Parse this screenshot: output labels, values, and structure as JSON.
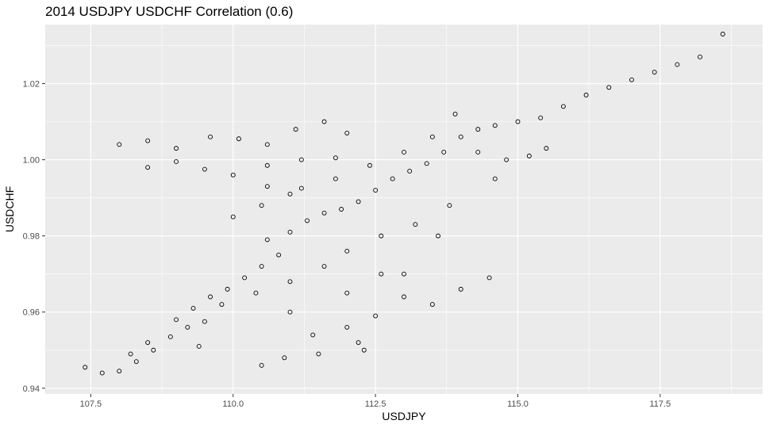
{
  "chart_data": {
    "type": "scatter",
    "title": "2014 USDJPY USDCHF Correlation (0.6)",
    "xlabel": "USDJPY",
    "ylabel": "USDCHF",
    "xlim": [
      106.7,
      119.3
    ],
    "ylim": [
      0.9385,
      1.0355
    ],
    "x_ticks": [
      107.5,
      110.0,
      112.5,
      115.0,
      117.5
    ],
    "x_tick_labels": [
      "107.5",
      "110.0",
      "112.5",
      "115.0",
      "117.5"
    ],
    "y_ticks": [
      0.94,
      0.96,
      0.98,
      1.0,
      1.02
    ],
    "y_tick_labels": [
      "0.94",
      "0.96",
      "0.98",
      "1.00",
      "1.02"
    ],
    "grid": true,
    "panel_background": "#ebebeb",
    "grid_color": "#ffffff",
    "marker": "hollow-circle",
    "marker_color": "#000000",
    "series": [
      {
        "values": [
          [
            107.4,
            0.9455
          ],
          [
            107.7,
            0.944
          ],
          [
            108.0,
            0.9445
          ],
          [
            108.3,
            0.947
          ],
          [
            108.6,
            0.95
          ],
          [
            108.9,
            0.9535
          ],
          [
            109.2,
            0.956
          ],
          [
            109.5,
            0.9575
          ],
          [
            109.3,
            0.961
          ],
          [
            109.6,
            0.964
          ],
          [
            109.9,
            0.966
          ],
          [
            110.2,
            0.969
          ],
          [
            110.5,
            0.972
          ],
          [
            110.8,
            0.975
          ],
          [
            110.6,
            0.979
          ],
          [
            111.0,
            0.981
          ],
          [
            111.3,
            0.984
          ],
          [
            111.6,
            0.986
          ],
          [
            111.9,
            0.987
          ],
          [
            112.2,
            0.989
          ],
          [
            112.5,
            0.992
          ],
          [
            112.8,
            0.995
          ],
          [
            113.1,
            0.997
          ],
          [
            113.4,
            0.999
          ],
          [
            113.7,
            1.002
          ],
          [
            114.0,
            1.006
          ],
          [
            114.3,
            1.008
          ],
          [
            114.6,
            1.009
          ],
          [
            115.0,
            1.01
          ],
          [
            115.4,
            1.011
          ],
          [
            115.8,
            1.014
          ],
          [
            116.2,
            1.017
          ],
          [
            116.6,
            1.019
          ],
          [
            117.0,
            1.021
          ],
          [
            117.4,
            1.023
          ],
          [
            117.8,
            1.025
          ],
          [
            118.2,
            1.027
          ],
          [
            118.6,
            1.033
          ],
          [
            108.5,
            0.998
          ],
          [
            109.0,
            0.9995
          ],
          [
            109.5,
            0.9975
          ],
          [
            108.0,
            1.004
          ],
          [
            108.5,
            1.005
          ],
          [
            109.0,
            1.003
          ],
          [
            109.6,
            1.006
          ],
          [
            110.1,
            1.0055
          ],
          [
            110.6,
            1.004
          ],
          [
            111.1,
            1.008
          ],
          [
            111.6,
            1.01
          ],
          [
            112.0,
            1.007
          ],
          [
            111.8,
            1.0005
          ],
          [
            111.2,
            1.0
          ],
          [
            110.6,
            0.9985
          ],
          [
            110.0,
            0.996
          ],
          [
            110.6,
            0.993
          ],
          [
            111.2,
            0.9925
          ],
          [
            111.8,
            0.995
          ],
          [
            112.4,
            0.9985
          ],
          [
            113.0,
            1.002
          ],
          [
            113.5,
            1.006
          ],
          [
            113.9,
            1.012
          ],
          [
            114.3,
            1.002
          ],
          [
            114.8,
            1.0
          ],
          [
            115.2,
            1.001
          ],
          [
            115.5,
            1.003
          ],
          [
            114.6,
            0.995
          ],
          [
            113.8,
            0.988
          ],
          [
            113.2,
            0.983
          ],
          [
            112.6,
            0.98
          ],
          [
            112.0,
            0.976
          ],
          [
            111.6,
            0.972
          ],
          [
            111.0,
            0.968
          ],
          [
            110.4,
            0.965
          ],
          [
            109.8,
            0.962
          ],
          [
            109.0,
            0.958
          ],
          [
            108.5,
            0.952
          ],
          [
            108.2,
            0.949
          ],
          [
            109.4,
            0.951
          ],
          [
            112.0,
            0.956
          ],
          [
            112.5,
            0.959
          ],
          [
            113.0,
            0.964
          ],
          [
            113.5,
            0.962
          ],
          [
            114.0,
            0.966
          ],
          [
            114.5,
            0.969
          ],
          [
            112.2,
            0.952
          ],
          [
            111.4,
            0.954
          ],
          [
            110.9,
            0.948
          ],
          [
            110.5,
            0.946
          ],
          [
            111.5,
            0.949
          ],
          [
            112.3,
            0.95
          ],
          [
            111.0,
            0.96
          ],
          [
            112.0,
            0.965
          ],
          [
            113.0,
            0.97
          ],
          [
            110.0,
            0.985
          ],
          [
            110.5,
            0.988
          ],
          [
            111.0,
            0.991
          ],
          [
            112.6,
            0.97
          ],
          [
            113.6,
            0.98
          ]
        ]
      }
    ]
  }
}
